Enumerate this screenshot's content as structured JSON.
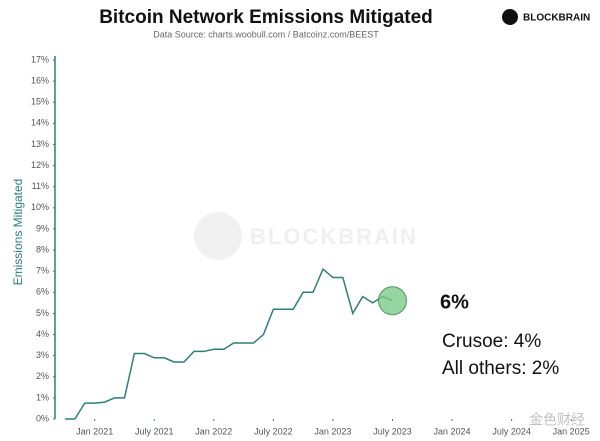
{
  "chart_data": {
    "type": "line",
    "title": "Bitcoin Network Emissions Mitigated",
    "subtitle": "Data Source: charts.woobull.com / Batcoinz.com/BEEST",
    "logo": "BLOCKBRAIN",
    "watermark": "BLOCKBRAIN",
    "corner_watermark": "金色财经",
    "ylabel": "Emissions Mitigated",
    "x": [
      "2020-10",
      "2020-11",
      "2020-12",
      "2021-01",
      "2021-02",
      "2021-03",
      "2021-04",
      "2021-05",
      "2021-06",
      "2021-07",
      "2021-08",
      "2021-09",
      "2021-10",
      "2021-11",
      "2021-12",
      "2022-01",
      "2022-02",
      "2022-03",
      "2022-04",
      "2022-05",
      "2022-06",
      "2022-07",
      "2022-08",
      "2022-09",
      "2022-10",
      "2022-11",
      "2022-12",
      "2023-01",
      "2023-02",
      "2023-03",
      "2023-04",
      "2023-05",
      "2023-06",
      "2023-07"
    ],
    "series": [
      {
        "name": "Emissions Mitigated",
        "color": "#2f7f7a",
        "values": [
          0,
          0,
          0.75,
          0.75,
          0.8,
          1.0,
          1.0,
          3.1,
          3.1,
          2.9,
          2.9,
          2.7,
          2.7,
          3.2,
          3.2,
          3.3,
          3.3,
          3.6,
          3.6,
          3.6,
          4.0,
          5.2,
          5.2,
          5.2,
          6.0,
          6.0,
          7.1,
          6.7,
          6.7,
          5.0,
          5.8,
          5.5,
          5.8,
          5.6
        ]
      }
    ],
    "xlim": [
      "2020-09",
      "2025-03"
    ],
    "xticks": [
      {
        "value": "2021-01",
        "label": "Jan 2021"
      },
      {
        "value": "2021-07",
        "label": "July 2021"
      },
      {
        "value": "2022-01",
        "label": "Jan 2022"
      },
      {
        "value": "2022-07",
        "label": "July 2022"
      },
      {
        "value": "2023-01",
        "label": "Jan 2023"
      },
      {
        "value": "2023-07",
        "label": "July 2023"
      },
      {
        "value": "2024-01",
        "label": "Jan 2024"
      },
      {
        "value": "2024-07",
        "label": "July 2024"
      },
      {
        "value": "2025-01",
        "label": "Jan 2025"
      }
    ],
    "ylim": [
      0,
      17
    ],
    "yticks": [
      {
        "value": 0,
        "label": "0%"
      },
      {
        "value": 1,
        "label": "1%"
      },
      {
        "value": 2,
        "label": "2%"
      },
      {
        "value": 3,
        "label": "3%"
      },
      {
        "value": 4,
        "label": "4%"
      },
      {
        "value": 5,
        "label": "5%"
      },
      {
        "value": 6,
        "label": "6%"
      },
      {
        "value": 7,
        "label": "7%"
      },
      {
        "value": 8,
        "label": "8%"
      },
      {
        "value": 9,
        "label": "9%"
      },
      {
        "value": 10,
        "label": "10%"
      },
      {
        "value": 11,
        "label": "11%"
      },
      {
        "value": 12,
        "label": "12%"
      },
      {
        "value": 13,
        "label": "13%"
      },
      {
        "value": 14,
        "label": "14%"
      },
      {
        "value": 15,
        "label": "15%"
      },
      {
        "value": 16,
        "label": "16%"
      },
      {
        "value": 17,
        "label": "17%"
      }
    ],
    "grid": false,
    "highlight_color": "#7cc98a",
    "annotations": [
      "6%",
      "Crusoe: 4%",
      "All others: 2%"
    ]
  }
}
